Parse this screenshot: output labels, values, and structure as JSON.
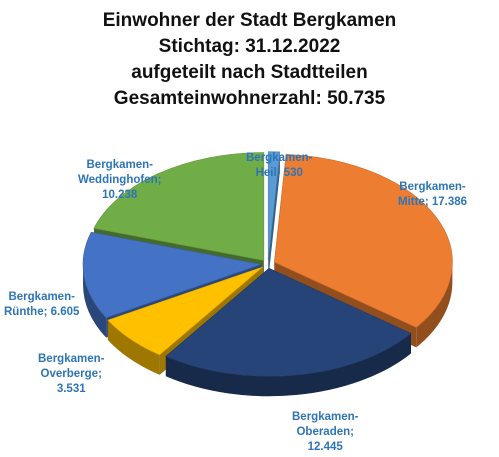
{
  "chart_data": {
    "type": "pie",
    "title_lines": [
      "Einwohner der Stadt Bergkamen",
      "Stichtag: 31.12.2022",
      "aufgeteilt nach Stadtteilen",
      "Gesamteinwohnerzahl: 50.735"
    ],
    "categories": [
      "Bergkamen-Heil",
      "Bergkamen-Mitte",
      "Bergkamen-Oberaden",
      "Bergkamen-Overberge",
      "Bergkamen-Rünthe",
      "Bergkamen-Weddinghofen"
    ],
    "values": [
      530,
      17386,
      12445,
      3531,
      6605,
      10238
    ],
    "colors": [
      "#5b9bd5",
      "#ed7d31",
      "#264478",
      "#ffc000",
      "#4472c4",
      "#70ad47"
    ],
    "labels": [
      [
        "Bergkamen-",
        "Heil; 530"
      ],
      [
        "Bergkamen-",
        "Mitte; 17.386"
      ],
      [
        "Bergkamen-",
        "Oberaden;",
        "12.445"
      ],
      [
        "Bergkamen-",
        "Overberge;",
        "3.531"
      ],
      [
        "Bergkamen-",
        "Rünthe; 6.605"
      ],
      [
        "Bergkamen-",
        "Weddinghofen;",
        "10.238"
      ]
    ],
    "label_color": "#2e75b6",
    "exploded": true,
    "three_d": true
  }
}
